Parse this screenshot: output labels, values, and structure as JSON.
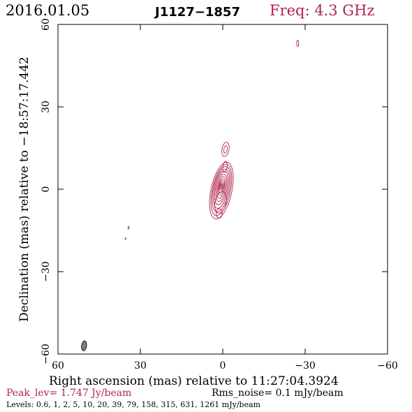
{
  "header": {
    "date": "2016.01.05",
    "source": "J1127−1857",
    "freq": "Freq: 4.3 GHz"
  },
  "footer": {
    "peak": "Peak_lev=  1.747 Jy/beam",
    "rms": "Rms_noise=  0.1 mJy/beam",
    "levels": "Levels: 0.6,    1,    2,    5,   10,   20,   39,   79,  158,  315,  631,  1261 mJy/beam"
  },
  "colors": {
    "accent": "#b0254a",
    "contour": "#b0254a",
    "beam": "#808080",
    "axis": "#000000"
  },
  "chart_data": {
    "type": "contour",
    "xlabel": "Right ascension (mas) relative to 11:27:04.3924",
    "ylabel": "Declination (mas) relative to −18:57:17.442",
    "xlim": [
      60,
      -60
    ],
    "ylim": [
      -60,
      60
    ],
    "x_reversed": true,
    "xticks": [
      60,
      30,
      0,
      -30,
      -60
    ],
    "yticks": [
      -60,
      -30,
      0,
      30,
      60
    ],
    "xtick_labels": [
      "60",
      "30",
      "0",
      "−30",
      "−60"
    ],
    "ytick_labels": [
      "−60",
      "−30",
      "0",
      "30",
      "60"
    ],
    "grid": false,
    "peak_jy_per_beam": 1.747,
    "rms_noise_mjy_per_beam": 0.1,
    "levels_mjy_per_beam": [
      0.6,
      1,
      2,
      5,
      10,
      20,
      39,
      79,
      158,
      315,
      631,
      1261
    ],
    "core": {
      "cx": 0.5,
      "cy": 0.0,
      "angle_deg": 12,
      "contours": [
        {
          "rx": 3.8,
          "ry": 10.5,
          "dy": -0.5
        },
        {
          "rx": 3.3,
          "ry": 9.5,
          "dy": -0.3
        },
        {
          "rx": 2.9,
          "ry": 8.4,
          "dy": 0.0
        },
        {
          "rx": 2.5,
          "ry": 7.3,
          "dy": 0.2
        },
        {
          "rx": 2.1,
          "ry": 6.2,
          "dy": 0.4
        },
        {
          "rx": 1.7,
          "ry": 5.1,
          "dy": 0.5
        },
        {
          "rx": 1.3,
          "ry": 4.0,
          "dy": 0.6
        },
        {
          "rx": 1.0,
          "ry": 3.0,
          "dy": 0.7
        },
        {
          "rx": 0.7,
          "ry": 2.1,
          "dy": 0.8
        },
        {
          "rx": 0.45,
          "ry": 1.3,
          "dy": 0.9
        },
        {
          "rx": 0.25,
          "ry": 0.7,
          "dy": 1.0
        }
      ]
    },
    "features": [
      {
        "name": "jet-north",
        "x": -1.0,
        "y": 14.5,
        "rx": 1.3,
        "ry": 2.6,
        "angle_deg": 10
      },
      {
        "name": "jet-north-inner",
        "x": -1.0,
        "y": 14.5,
        "rx": 0.6,
        "ry": 1.4,
        "angle_deg": 10
      },
      {
        "name": "jet-lower-knot",
        "x": 0.8,
        "y": -4.8,
        "rx": 2.0,
        "ry": 4.0,
        "angle_deg": 12
      },
      {
        "name": "jet-lower-tail",
        "x": 1.3,
        "y": -8.8,
        "rx": 1.1,
        "ry": 1.7,
        "angle_deg": 0
      },
      {
        "name": "jet-upper-knot",
        "x": -0.8,
        "y": 8.2,
        "rx": 0.8,
        "ry": 2.0,
        "angle_deg": 8
      },
      {
        "name": "far-blob-ne",
        "x": -27.3,
        "y": 53.1,
        "rx": 0.35,
        "ry": 1.2,
        "angle_deg": 0
      },
      {
        "name": "blob-sw-1",
        "x": 34.3,
        "y": -14.0,
        "rx": 0.2,
        "ry": 0.5,
        "angle_deg": 0
      },
      {
        "name": "blob-sw-2",
        "x": 35.4,
        "y": -18.0,
        "rx": 0.15,
        "ry": 0.3,
        "angle_deg": 0
      }
    ],
    "beam": {
      "x": 50.5,
      "y": -57.0,
      "rx": 0.9,
      "ry": 1.8,
      "angle_deg": 8
    }
  }
}
